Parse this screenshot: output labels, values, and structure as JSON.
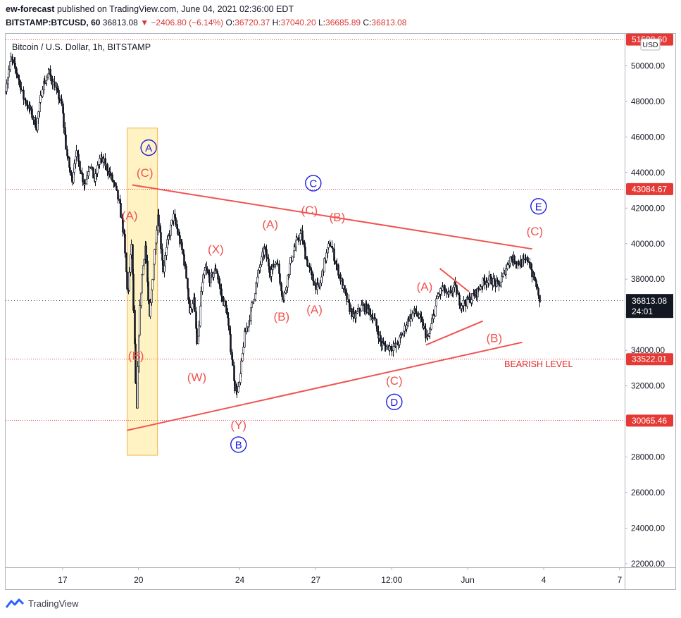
{
  "header": {
    "line1_author": "ew-forecast",
    "line1_rest": "published on TradingView.com, June 04, 2021 02:36:00 EDT",
    "symbol": "BITSTAMP:BTCUSD, 60",
    "last": "36813.08",
    "change": "▼ −2406.80 (−6.14%)",
    "o_label": "O:",
    "o_value": "36720.37",
    "h_label": "H:",
    "h_value": "37040.20",
    "l_label": "L:",
    "l_value": "36685.89",
    "c_label": "C:",
    "c_value": "36813.08"
  },
  "footer": {
    "brand": "TradingView"
  },
  "chart_data": {
    "type": "candlestick",
    "title": "Bitcoin / U.S. Dollar, 1h, BITSTAMP",
    "currency_badge": "USD",
    "y_ticks": [
      22000,
      24000,
      26000,
      28000,
      30000,
      32000,
      34000,
      36000,
      38000,
      40000,
      42000,
      44000,
      46000,
      48000,
      50000
    ],
    "y_tick_labels": [
      "22000.00",
      "24000.00",
      "26000.00",
      "28000.00",
      "30000.00",
      "32000.00",
      "34000.00",
      "36000.00",
      "38000.00",
      "40000.00",
      "42000.00",
      "44000.00",
      "46000.00",
      "48000.00",
      "50000.00"
    ],
    "ylim": [
      21800,
      51800
    ],
    "x_ticks": [
      "17",
      "20",
      "24",
      "27",
      "12:00",
      "Jun",
      "4",
      "7"
    ],
    "x_tick_days": [
      0,
      3,
      7,
      10,
      13,
      16,
      19,
      22
    ],
    "xlim": [
      -2.25,
      22.2
    ],
    "price_lines": [
      {
        "value": 51500,
        "label": "51500.60",
        "style": "red"
      },
      {
        "value": 43084.67,
        "label": "43084.67",
        "style": "red"
      },
      {
        "value": 36813.08,
        "label": "36813.08",
        "sublabel": "24:01",
        "style": "current"
      },
      {
        "value": 33522.01,
        "label": "33522.01",
        "style": "red"
      },
      {
        "value": 30065.46,
        "label": "30065.46",
        "style": "red"
      }
    ],
    "price_path": [
      [
        -2.25,
        48500
      ],
      [
        -2.0,
        50400
      ],
      [
        -1.75,
        49500
      ],
      [
        -1.5,
        48200
      ],
      [
        -1.25,
        47500
      ],
      [
        -1.0,
        46600
      ],
      [
        -0.75,
        48900
      ],
      [
        -0.5,
        49600
      ],
      [
        -0.25,
        48700
      ],
      [
        0.0,
        47800
      ],
      [
        0.2,
        45000
      ],
      [
        0.4,
        43500
      ],
      [
        0.55,
        45200
      ],
      [
        0.7,
        44400
      ],
      [
        0.9,
        43300
      ],
      [
        1.1,
        44600
      ],
      [
        1.3,
        43500
      ],
      [
        1.5,
        44800
      ],
      [
        1.7,
        44500
      ],
      [
        1.9,
        43900
      ],
      [
        2.1,
        43200
      ],
      [
        2.3,
        42000
      ],
      [
        2.45,
        40500
      ],
      [
        2.6,
        37000
      ],
      [
        2.75,
        40000
      ],
      [
        2.85,
        35500
      ],
      [
        2.95,
        30200
      ],
      [
        3.05,
        35500
      ],
      [
        3.15,
        38000
      ],
      [
        3.3,
        40000
      ],
      [
        3.45,
        35600
      ],
      [
        3.6,
        38500
      ],
      [
        3.8,
        41800
      ],
      [
        4.0,
        38500
      ],
      [
        4.2,
        40300
      ],
      [
        4.4,
        41600
      ],
      [
        4.6,
        40500
      ],
      [
        4.8,
        39300
      ],
      [
        4.95,
        37800
      ],
      [
        5.05,
        36000
      ],
      [
        5.2,
        37000
      ],
      [
        5.35,
        34000
      ],
      [
        5.5,
        37300
      ],
      [
        5.65,
        38600
      ],
      [
        5.85,
        38000
      ],
      [
        6.1,
        38600
      ],
      [
        6.3,
        37000
      ],
      [
        6.5,
        36300
      ],
      [
        6.7,
        33700
      ],
      [
        6.85,
        31700
      ],
      [
        7.0,
        32000
      ],
      [
        7.2,
        34800
      ],
      [
        7.4,
        35800
      ],
      [
        7.6,
        37200
      ],
      [
        7.8,
        38700
      ],
      [
        8.0,
        39700
      ],
      [
        8.25,
        38400
      ],
      [
        8.5,
        39100
      ],
      [
        8.75,
        36800
      ],
      [
        9.0,
        38800
      ],
      [
        9.25,
        40000
      ],
      [
        9.45,
        40600
      ],
      [
        9.65,
        39200
      ],
      [
        9.9,
        38000
      ],
      [
        10.15,
        37400
      ],
      [
        10.4,
        39100
      ],
      [
        10.6,
        40100
      ],
      [
        10.8,
        39000
      ],
      [
        11.05,
        37800
      ],
      [
        11.3,
        36600
      ],
      [
        11.55,
        35800
      ],
      [
        11.85,
        36500
      ],
      [
        12.1,
        36300
      ],
      [
        12.35,
        35700
      ],
      [
        12.6,
        34400
      ],
      [
        12.8,
        34200
      ],
      [
        13.0,
        34200
      ],
      [
        13.2,
        34200
      ],
      [
        13.45,
        34900
      ],
      [
        13.7,
        35800
      ],
      [
        13.95,
        36200
      ],
      [
        14.2,
        35600
      ],
      [
        14.45,
        34600
      ],
      [
        14.65,
        35800
      ],
      [
        14.85,
        37100
      ],
      [
        15.05,
        37500
      ],
      [
        15.25,
        37000
      ],
      [
        15.5,
        37600
      ],
      [
        15.75,
        36600
      ],
      [
        15.95,
        36700
      ],
      [
        16.2,
        37000
      ],
      [
        16.4,
        37300
      ],
      [
        16.6,
        37800
      ],
      [
        16.8,
        38000
      ],
      [
        17.0,
        37900
      ],
      [
        17.25,
        37600
      ],
      [
        17.5,
        38500
      ],
      [
        17.7,
        39200
      ],
      [
        17.95,
        39000
      ],
      [
        18.2,
        38900
      ],
      [
        18.45,
        39100
      ],
      [
        18.6,
        38200
      ],
      [
        18.75,
        37700
      ],
      [
        18.85,
        36813
      ]
    ],
    "shapes": [
      {
        "type": "rectangle",
        "x1": 2.55,
        "y1": 46500,
        "x2": 3.75,
        "y2": 28100,
        "color": "#f4b24a"
      },
      {
        "type": "trendline",
        "x1": 2.75,
        "y1": 43300,
        "x2": 18.55,
        "y2": 39700,
        "color": "#f05350"
      },
      {
        "type": "trendline",
        "x1": 2.55,
        "y1": 29500,
        "x2": 18.15,
        "y2": 34450,
        "color": "#f05350"
      },
      {
        "type": "trendline",
        "x1": 14.35,
        "y1": 34300,
        "x2": 16.6,
        "y2": 35650,
        "color": "#f05350"
      },
      {
        "type": "trendline",
        "x1": 14.9,
        "y1": 38600,
        "x2": 16.05,
        "y2": 37300,
        "color": "#f05350"
      }
    ],
    "annotations": [
      {
        "text": "(A)",
        "x": 2.65,
        "y": 41600,
        "style": "red"
      },
      {
        "text": "(B)",
        "x": 2.9,
        "y": 33700,
        "style": "red"
      },
      {
        "text": "(C)",
        "x": 3.25,
        "y": 44000,
        "style": "red"
      },
      {
        "text": "A",
        "x": 3.4,
        "y": 45400,
        "style": "blue-circle"
      },
      {
        "text": "(W)",
        "x": 5.3,
        "y": 32500,
        "style": "red"
      },
      {
        "text": "(X)",
        "x": 6.05,
        "y": 39700,
        "style": "red"
      },
      {
        "text": "(Y)",
        "x": 6.95,
        "y": 29800,
        "style": "red"
      },
      {
        "text": "B",
        "x": 6.95,
        "y": 28700,
        "style": "blue-circle"
      },
      {
        "text": "(A)",
        "x": 8.2,
        "y": 41100,
        "style": "red"
      },
      {
        "text": "(B)",
        "x": 8.65,
        "y": 35900,
        "style": "red"
      },
      {
        "text": "(C)",
        "x": 9.75,
        "y": 41900,
        "style": "red"
      },
      {
        "text": "C",
        "x": 9.9,
        "y": 43400,
        "style": "blue-circle"
      },
      {
        "text": "(A)",
        "x": 9.95,
        "y": 36300,
        "style": "red"
      },
      {
        "text": "(B)",
        "x": 10.85,
        "y": 41500,
        "style": "red"
      },
      {
        "text": "(C)",
        "x": 13.1,
        "y": 32300,
        "style": "red"
      },
      {
        "text": "D",
        "x": 13.1,
        "y": 31100,
        "style": "blue-circle"
      },
      {
        "text": "(A)",
        "x": 14.3,
        "y": 37600,
        "style": "red"
      },
      {
        "text": "(B)",
        "x": 17.05,
        "y": 34700,
        "style": "red"
      },
      {
        "text": "BEARISH LEVEL",
        "x": 18.8,
        "y": 33050,
        "style": "red-small"
      },
      {
        "text": "(C)",
        "x": 18.65,
        "y": 40700,
        "style": "red"
      },
      {
        "text": "E",
        "x": 18.8,
        "y": 42100,
        "style": "blue-circle"
      }
    ],
    "colors": {
      "accent_red": "#f05350",
      "blue": "#1b1be0",
      "rect_fill": "#fff3c4",
      "candle": "#131722",
      "axis_text": "#131722"
    }
  }
}
